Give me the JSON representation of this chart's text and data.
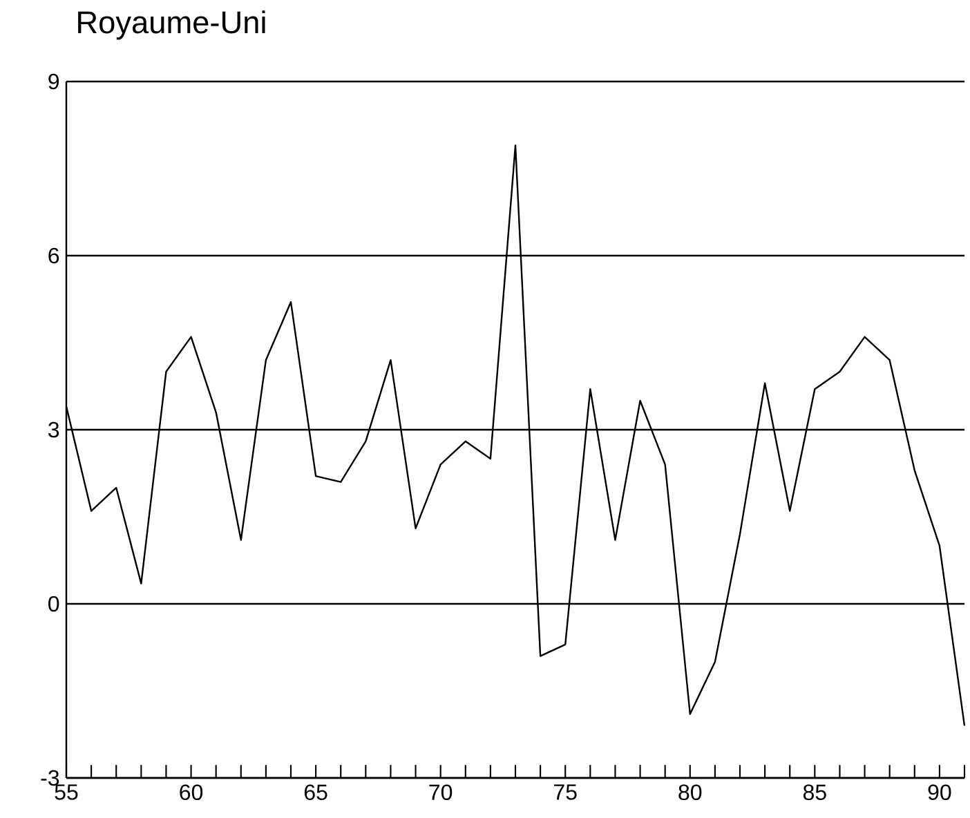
{
  "chart_data": {
    "type": "line",
    "title": "Royaume-Uni",
    "x": [
      55,
      56,
      57,
      58,
      59,
      60,
      61,
      62,
      63,
      64,
      65,
      66,
      67,
      68,
      69,
      70,
      71,
      72,
      73,
      74,
      75,
      76,
      77,
      78,
      79,
      80,
      81,
      82,
      83,
      84,
      85,
      86,
      87,
      88,
      89,
      90,
      91
    ],
    "series": [
      {
        "color": "#000000",
        "values": [
          3.4,
          1.6,
          2.0,
          0.35,
          4.0,
          4.6,
          3.3,
          1.1,
          4.2,
          5.2,
          2.2,
          2.1,
          2.8,
          4.2,
          1.3,
          2.4,
          2.8,
          2.5,
          7.9,
          -0.9,
          -0.7,
          3.7,
          1.1,
          3.5,
          2.4,
          -1.9,
          -1.0,
          1.2,
          3.8,
          1.6,
          3.7,
          4.0,
          4.6,
          4.2,
          2.3,
          1.0,
          -2.1
        ]
      }
    ],
    "xlim": [
      55,
      91
    ],
    "xticks": [
      55,
      {
        "value": 56,
        "label": null
      },
      {
        "value": 57,
        "label": null
      },
      {
        "value": 58,
        "label": null
      },
      {
        "value": 59,
        "label": null
      },
      60,
      {
        "value": 61,
        "label": null
      },
      {
        "value": 62,
        "label": null
      },
      {
        "value": 63,
        "label": null
      },
      {
        "value": 64,
        "label": null
      },
      65,
      {
        "value": 66,
        "label": null
      },
      {
        "value": 67,
        "label": null
      },
      {
        "value": 68,
        "label": null
      },
      {
        "value": 69,
        "label": null
      },
      70,
      {
        "value": 71,
        "label": null
      },
      {
        "value": 72,
        "label": null
      },
      {
        "value": 73,
        "label": null
      },
      {
        "value": 74,
        "label": null
      },
      75,
      {
        "value": 76,
        "label": null
      },
      {
        "value": 77,
        "label": null
      },
      {
        "value": 78,
        "label": null
      },
      {
        "value": 79,
        "label": null
      },
      80,
      {
        "value": 81,
        "label": null
      },
      {
        "value": 82,
        "label": null
      },
      {
        "value": 83,
        "label": null
      },
      {
        "value": 84,
        "label": null
      },
      85,
      {
        "value": 86,
        "label": null
      },
      {
        "value": 87,
        "label": null
      },
      {
        "value": 88,
        "label": null
      },
      {
        "value": 89,
        "label": null
      },
      90,
      {
        "value": 91,
        "label": null
      }
    ],
    "ylim": [
      -3,
      9
    ],
    "yticks": [
      -3,
      0,
      3,
      6,
      9
    ],
    "grid": "y",
    "marker": "none",
    "line_style": "solid"
  }
}
